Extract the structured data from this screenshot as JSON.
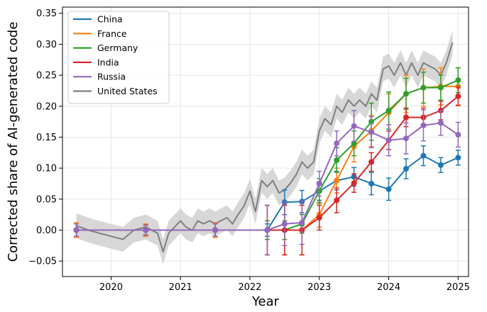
{
  "chart_data": {
    "type": "line",
    "xlabel": "Year",
    "ylabel": "Corrected share of AI-generated code",
    "xlim": [
      2019.3,
      2025.15
    ],
    "ylim": [
      -0.075,
      0.36
    ],
    "xticks": [
      {
        "value": 2020,
        "label": "2020"
      },
      {
        "value": 2021,
        "label": "2021"
      },
      {
        "value": 2022,
        "label": "2022"
      },
      {
        "value": 2023,
        "label": "2023"
      },
      {
        "value": 2024,
        "label": "2024"
      },
      {
        "value": 2025,
        "label": "2025"
      }
    ],
    "yticks": [
      {
        "value": -0.05,
        "label": "−0.05"
      },
      {
        "value": 0.0,
        "label": "0.00"
      },
      {
        "value": 0.05,
        "label": "0.05"
      },
      {
        "value": 0.1,
        "label": "0.10"
      },
      {
        "value": 0.15,
        "label": "0.15"
      },
      {
        "value": 0.2,
        "label": "0.20"
      },
      {
        "value": 0.25,
        "label": "0.25"
      },
      {
        "value": 0.3,
        "label": "0.30"
      },
      {
        "value": 0.35,
        "label": "0.35"
      }
    ],
    "grid": true,
    "legend_position": "top-left",
    "series": [
      {
        "name": "China",
        "color": "#1f77b4",
        "x": [
          2019.5,
          2020.5,
          2021.5,
          2022.25,
          2022.5,
          2022.75,
          2023.0,
          2023.25,
          2023.5,
          2023.75,
          2024.0,
          2024.25,
          2024.5,
          2024.75,
          2025.0
        ],
        "y": [
          0.0,
          0.0,
          0.0,
          0.0,
          0.045,
          0.046,
          0.063,
          0.08,
          0.086,
          0.075,
          0.066,
          0.099,
          0.12,
          0.105,
          0.117
        ],
        "err": [
          0.01,
          0.008,
          0.01,
          0.01,
          0.02,
          0.018,
          0.015,
          0.015,
          0.015,
          0.018,
          0.018,
          0.016,
          0.016,
          0.012,
          0.012
        ]
      },
      {
        "name": "France",
        "color": "#ff7f0e",
        "x": [
          2019.5,
          2020.5,
          2021.5,
          2022.25,
          2022.5,
          2022.75,
          2023.0,
          2023.25,
          2023.5,
          2023.75,
          2024.0,
          2024.25,
          2024.5,
          2024.75,
          2025.0
        ],
        "y": [
          0.0,
          0.0,
          0.0,
          0.0,
          0.0,
          0.0,
          0.025,
          0.08,
          0.135,
          0.16,
          0.19,
          0.22,
          0.23,
          0.232,
          0.232
        ],
        "err": [
          0.012,
          0.01,
          0.012,
          0.04,
          0.04,
          0.04,
          0.02,
          0.02,
          0.025,
          0.025,
          0.03,
          0.03,
          0.03,
          0.03,
          0.03
        ]
      },
      {
        "name": "Germany",
        "color": "#2ca02c",
        "x": [
          2019.5,
          2020.5,
          2021.5,
          2022.25,
          2022.5,
          2022.75,
          2023.0,
          2023.25,
          2023.5,
          2023.75,
          2024.0,
          2024.25,
          2024.5,
          2024.75,
          2025.0
        ],
        "y": [
          0.0,
          0.0,
          0.0,
          0.0,
          0.0,
          0.01,
          0.063,
          0.113,
          0.14,
          0.175,
          0.193,
          0.22,
          0.23,
          0.23,
          0.242
        ],
        "err": [
          0.01,
          0.008,
          0.01,
          0.015,
          0.015,
          0.015,
          0.02,
          0.02,
          0.02,
          0.03,
          0.03,
          0.025,
          0.025,
          0.02,
          0.02
        ]
      },
      {
        "name": "India",
        "color": "#d62728",
        "x": [
          2019.5,
          2020.5,
          2021.5,
          2022.25,
          2022.5,
          2022.75,
          2023.0,
          2023.25,
          2023.5,
          2023.75,
          2024.0,
          2024.25,
          2024.5,
          2024.75,
          2025.0
        ],
        "y": [
          0.0,
          0.0,
          0.0,
          0.0,
          0.0,
          0.0,
          0.02,
          0.048,
          0.076,
          0.11,
          0.145,
          0.182,
          0.182,
          0.193,
          0.216
        ],
        "err": [
          0.01,
          0.008,
          0.01,
          0.04,
          0.04,
          0.04,
          0.02,
          0.02,
          0.015,
          0.015,
          0.015,
          0.015,
          0.015,
          0.015,
          0.015
        ]
      },
      {
        "name": "Russia",
        "color": "#9467bd",
        "x": [
          2019.5,
          2020.5,
          2021.5,
          2022.25,
          2022.5,
          2022.75,
          2023.0,
          2023.25,
          2023.5,
          2023.75,
          2024.0,
          2024.25,
          2024.5,
          2024.75,
          2025.0
        ],
        "y": [
          0.0,
          0.0,
          0.0,
          0.0,
          0.01,
          0.012,
          0.075,
          0.14,
          0.168,
          0.158,
          0.145,
          0.148,
          0.169,
          0.173,
          0.154
        ],
        "err": [
          0.01,
          0.008,
          0.01,
          0.04,
          0.035,
          0.035,
          0.02,
          0.02,
          0.025,
          0.025,
          0.025,
          0.025,
          0.025,
          0.02,
          0.02
        ]
      }
    ],
    "us_series": {
      "name": "United States",
      "color": "#7f7f7f",
      "band_color": "#d0d0d0",
      "band_halfwidth": 0.02,
      "x": [
        2019.5,
        2019.67,
        2019.83,
        2020.0,
        2020.17,
        2020.33,
        2020.5,
        2020.67,
        2020.75,
        2020.83,
        2021.0,
        2021.08,
        2021.17,
        2021.25,
        2021.33,
        2021.42,
        2021.5,
        2021.58,
        2021.67,
        2021.75,
        2021.83,
        2021.92,
        2022.0,
        2022.08,
        2022.17,
        2022.25,
        2022.33,
        2022.42,
        2022.5,
        2022.58,
        2022.67,
        2022.75,
        2022.83,
        2022.92,
        2023.0,
        2023.08,
        2023.17,
        2023.25,
        2023.33,
        2023.42,
        2023.5,
        2023.58,
        2023.67,
        2023.75,
        2023.83,
        2023.92,
        2024.0,
        2024.08,
        2024.17,
        2024.25,
        2024.33,
        2024.42,
        2024.5,
        2024.58,
        2024.67,
        2024.75,
        2024.83,
        2024.92
      ],
      "y": [
        0.007,
        0.0,
        -0.005,
        -0.01,
        -0.015,
        0.0,
        0.005,
        -0.005,
        -0.035,
        -0.005,
        0.015,
        0.005,
        0.0,
        0.015,
        0.01,
        0.015,
        0.01,
        0.015,
        0.02,
        0.01,
        0.025,
        0.04,
        0.063,
        0.03,
        0.08,
        0.07,
        0.08,
        0.06,
        0.065,
        0.075,
        0.09,
        0.11,
        0.1,
        0.11,
        0.16,
        0.18,
        0.17,
        0.2,
        0.19,
        0.21,
        0.2,
        0.21,
        0.2,
        0.22,
        0.21,
        0.26,
        0.265,
        0.25,
        0.27,
        0.25,
        0.27,
        0.25,
        0.27,
        0.265,
        0.26,
        0.25,
        0.27,
        0.303
      ]
    }
  }
}
